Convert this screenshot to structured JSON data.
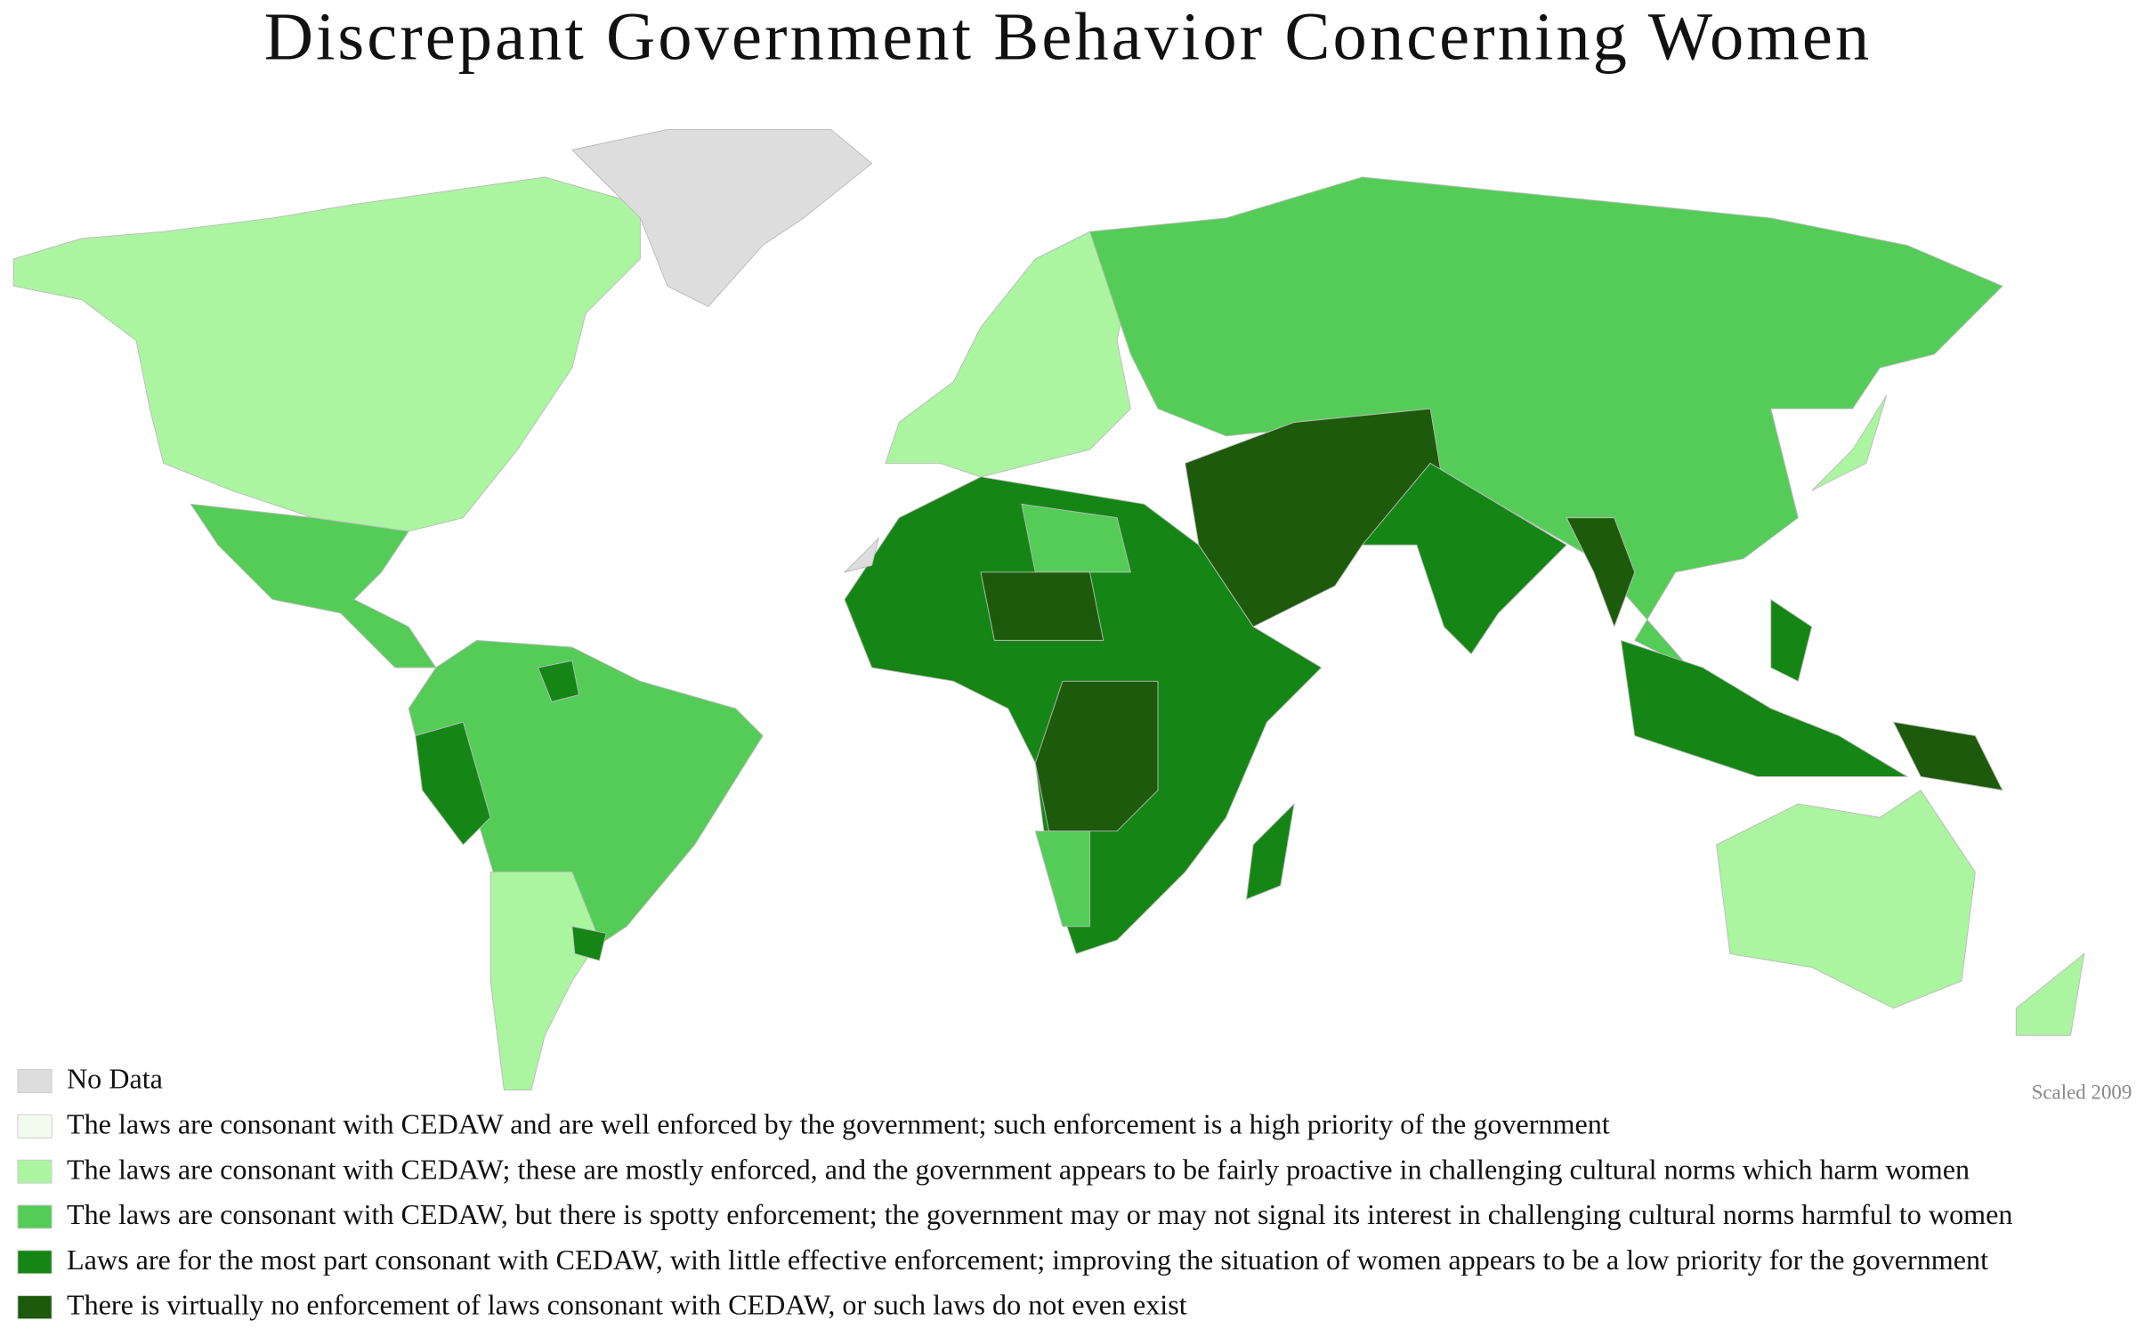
{
  "header": {
    "title": "Discrepant Government Behavior Concerning Women"
  },
  "legend": {
    "items": [
      {
        "label": "No Data",
        "color": "#dddddd"
      },
      {
        "label": "The laws are consonant with CEDAW and are well enforced by the government; such enforcement is a high priority of the government",
        "color": "#f2fcee"
      },
      {
        "label": "The laws are consonant with CEDAW; these are mostly enforced, and the government appears to be fairly proactive in challenging cultural norms which harm women",
        "color": "#abf5a1"
      },
      {
        "label": "The laws are consonant with CEDAW, but there is spotty enforcement; the government may or may not signal its interest in challenging cultural norms harmful to women",
        "color": "#55cc58"
      },
      {
        "label": "Laws are for the most part consonant with CEDAW, with little effective enforcement; improving the situation of women appears to be a low priority for the government",
        "color": "#158615"
      },
      {
        "label": "There is virtually no enforcement of laws consonant with CEDAW, or such laws do not even exist",
        "color": "#1d5a0b"
      }
    ]
  },
  "credit": "Scaled 2009"
}
